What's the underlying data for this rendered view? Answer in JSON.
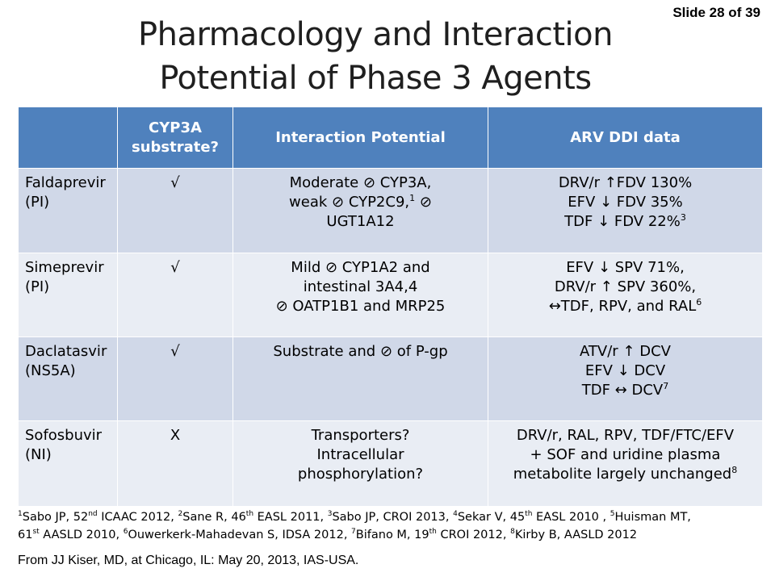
{
  "slide_number": "Slide 28 of 39",
  "title_line1": "Pharmacology and Interaction",
  "title_line2": "Potential of Phase 3 Agents",
  "table": {
    "headers": [
      "",
      "CYP3A substrate?",
      "Interaction Potential",
      "ARV DDI data"
    ],
    "rows": [
      {
        "agent": "Faldaprevir (PI)",
        "cyp3a": "√",
        "interaction": [
          "Moderate ⊘ CYP3A,",
          "weak ⊘ CYP2C9,1 ⊘",
          "UGT1A12"
        ],
        "arv": [
          "DRV/r ↑FDV 130%",
          "EFV ↓ FDV 35%",
          "TDF ↓ FDV 22%3"
        ]
      },
      {
        "agent": "Simeprevir (PI)",
        "cyp3a": "√",
        "interaction": [
          "Mild ⊘ CYP1A2 and",
          "intestinal 3A4,4",
          "⊘ OATP1B1 and MRP25"
        ],
        "arv": [
          "EFV ↓ SPV 71%,",
          "DRV/r ↑ SPV 360%,",
          "↔TDF, RPV, and RAL6"
        ]
      },
      {
        "agent": "Daclatasvir (NS5A)",
        "cyp3a": "√",
        "interaction": [
          "Substrate and ⊘ of P-gp"
        ],
        "arv": [
          "ATV/r ↑ DCV",
          "EFV ↓ DCV",
          "TDF ↔ DCV7"
        ]
      },
      {
        "agent": "Sofosbuvir (NI)",
        "cyp3a": "X",
        "interaction": [
          "Transporters?",
          "Intracellular",
          "phosphorylation?"
        ],
        "arv": [
          "DRV/r, RAL, RPV, TDF/FTC/EFV",
          "+ SOF and uridine plasma",
          "metabolite largely unchanged8"
        ]
      }
    ]
  },
  "footnote_line1": "1Sabo JP, 52nd ICAAC 2012, 2Sane R, 46th EASL 2011, 3Sabo JP, CROI 2013, 4Sekar V, 45th EASL 2010 , 5Huisman MT,",
  "footnote_line2": "61st AASLD 2010, 6Ouwerkerk-Mahadevan S, IDSA 2012, 7Bifano M, 19th CROI 2012, 8Kirby B, AASLD 2012",
  "source": "From JJ Kiser, MD, at Chicago, IL: May 20, 2013, IAS-USA.",
  "colors": {
    "header_bg": "#4f81bd",
    "row_dark": "#d0d8e8",
    "row_light": "#e9edf4"
  }
}
